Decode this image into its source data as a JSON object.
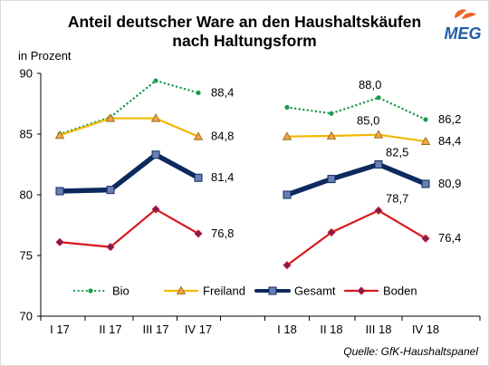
{
  "logo": {
    "text": "MEG",
    "color": "#1f5fa8",
    "leaf_color": "#e8662b"
  },
  "source": "Quelle: GfK-Haushaltspanel",
  "chart_data": {
    "type": "line",
    "title": "Anteil deutscher Ware an den Haushaltskäufen",
    "subtitle": "nach Haltungsform",
    "ylabel": "in Prozent",
    "xlabel": "",
    "ylim": [
      70,
      90
    ],
    "yticks": [
      70,
      75,
      80,
      85,
      90
    ],
    "grid": false,
    "legend_position": "inside-bottom",
    "groups": [
      {
        "categories": [
          "I 17",
          "II 17",
          "III 17",
          "IV 17"
        ]
      },
      {
        "categories": [
          "I 18",
          "II 18",
          "III 18",
          "IV 18"
        ]
      }
    ],
    "series": [
      {
        "name": "Bio",
        "color": "#1a9b4b",
        "style": "dotted",
        "marker": "dot",
        "values": [
          [
            85.0,
            86.4,
            89.4,
            88.4
          ],
          [
            87.2,
            86.7,
            88.0,
            86.2
          ]
        ],
        "labels": [
          [
            "",
            "",
            "",
            "88,4"
          ],
          [
            "",
            "",
            "88,0",
            "86,2"
          ]
        ]
      },
      {
        "name": "Freiland",
        "color": "#f2b800",
        "style": "solid",
        "marker": "triangle",
        "values": [
          [
            84.9,
            86.3,
            86.3,
            84.8
          ],
          [
            84.8,
            84.85,
            84.95,
            84.4
          ]
        ],
        "labels": [
          [
            "",
            "",
            "",
            "84,8"
          ],
          [
            "",
            "",
            "85,0",
            "84,4"
          ]
        ]
      },
      {
        "name": "Gesamt",
        "color": "#0d2a5e",
        "style": "thick",
        "marker": "square",
        "values": [
          [
            80.3,
            80.4,
            83.3,
            81.4
          ],
          [
            80.0,
            81.3,
            82.5,
            80.9
          ]
        ],
        "labels": [
          [
            "",
            "",
            "",
            "81,4"
          ],
          [
            "",
            "",
            "82,5",
            "80,9"
          ]
        ]
      },
      {
        "name": "Boden",
        "color": "#d7191c",
        "style": "solid",
        "marker": "diamond",
        "values": [
          [
            76.1,
            75.7,
            78.8,
            76.8
          ],
          [
            74.2,
            76.9,
            78.7,
            76.4
          ]
        ],
        "labels": [
          [
            "",
            "",
            "",
            "76,8"
          ],
          [
            "",
            "",
            "78,7",
            "76,4"
          ]
        ]
      }
    ]
  }
}
